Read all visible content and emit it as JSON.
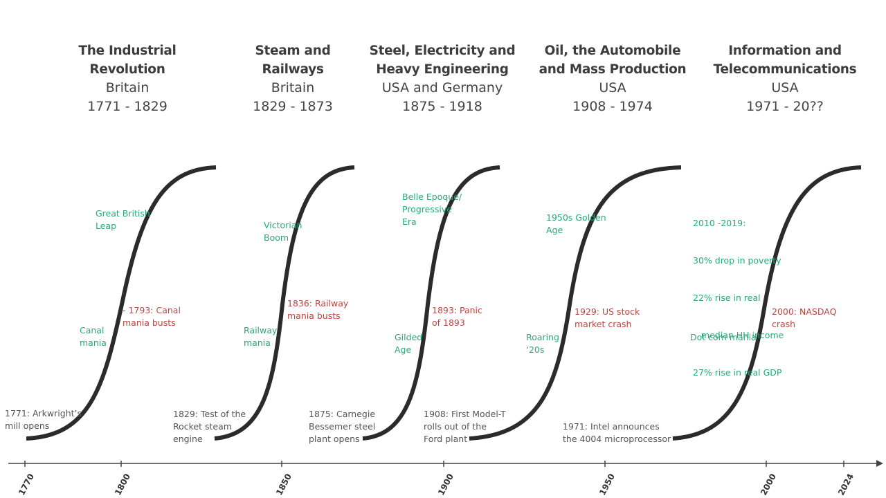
{
  "waves": [
    {
      "title_line1": "The Industrial",
      "title_line2": "Revolution",
      "country": "Britain",
      "period": "1771 - 1829"
    },
    {
      "title_line1": "Steam and",
      "title_line2": "Railways",
      "country": "Britain",
      "period": "1829 - 1873"
    },
    {
      "title_line1": "Steel, Electricity and",
      "title_line2": "Heavy Engineering",
      "country": "USA and Germany",
      "period": "1875 - 1918"
    },
    {
      "title_line1": "Oil, the Automobile",
      "title_line2": "and Mass Production",
      "country": "USA",
      "period": "1908 - 1974"
    },
    {
      "title_line1": "Information and",
      "title_line2": "Telecommunications",
      "country": "USA",
      "period": "1971 - 20??"
    }
  ],
  "annotations": {
    "w1": {
      "start": [
        "1771: Arkwright’s",
        "mill opens"
      ],
      "mania": [
        "Canal",
        "mania"
      ],
      "bust": [
        "- 1793: Canal",
        "mania busts"
      ],
      "boom": [
        "Great British",
        "Leap"
      ]
    },
    "w2": {
      "start": [
        "1829: Test of the",
        "Rocket steam",
        "engine"
      ],
      "mania": [
        "Railway",
        "mania"
      ],
      "bust": [
        "1836: Railway",
        "mania busts"
      ],
      "boom": [
        "Victorian",
        "Boom"
      ]
    },
    "w3": {
      "start": [
        "1875: Carnegie",
        "Bessemer steel",
        "plant opens"
      ],
      "mania": [
        "Gilded",
        "Age"
      ],
      "bust": [
        "1893: Panic",
        "of 1893"
      ],
      "boom": [
        "Belle Epoque/",
        "Progressive",
        "Era"
      ]
    },
    "w4": {
      "start": [
        "1908: First Model-T",
        "rolls out of the",
        "Ford plant"
      ],
      "mania": [
        "Roaring",
        "‘20s"
      ],
      "bust": [
        "1929: US stock",
        "market crash"
      ],
      "boom": [
        "1950s Golden",
        "Age"
      ]
    },
    "w5": {
      "start": [
        "1971: Intel announces",
        "the 4004 microprocessor"
      ],
      "mania": [
        "Dot com mania"
      ],
      "bust": [
        "2000: NASDAQ",
        "crash"
      ],
      "boom": [
        "2010 -2019:",
        "30% drop in poverty",
        "22% rise in real",
        "   median HH income",
        "27% rise in real GDP"
      ]
    }
  },
  "axis": {
    "ticks": [
      "1770",
      "1800",
      "1850",
      "1900",
      "1950",
      "2000",
      "2024"
    ]
  },
  "colors": {
    "curve": "#2b2b2b",
    "green": "#2aa878",
    "red": "#b5473f",
    "text": "#444444"
  }
}
